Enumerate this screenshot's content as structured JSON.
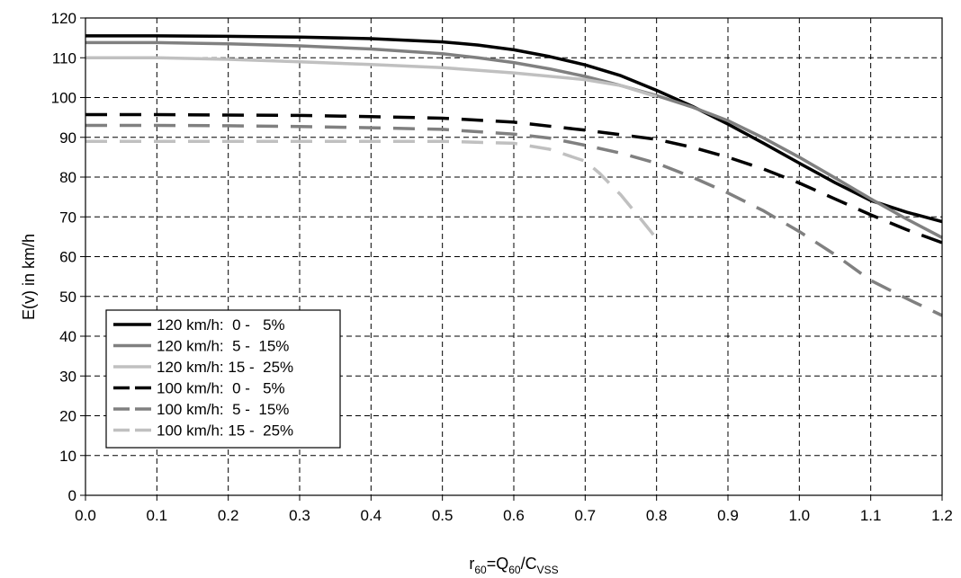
{
  "chart_data": {
    "type": "line",
    "title": "",
    "ylabel": "E(v) in km/h",
    "xlabel": {
      "base": "r",
      "base_sub": "60",
      "mid": "=Q",
      "mid_sub": "60",
      "end": "/C",
      "end_sub": "VSS"
    },
    "xlim": [
      0,
      1.2
    ],
    "ylim": [
      0,
      120
    ],
    "x_ticks": [
      "0.0",
      "0.1",
      "0.2",
      "0.3",
      "0.4",
      "0.5",
      "0.6",
      "0.7",
      "0.8",
      "0.9",
      "1.0",
      "1.1",
      "1.2"
    ],
    "y_ticks": [
      "0",
      "10",
      "20",
      "30",
      "40",
      "50",
      "60",
      "70",
      "80",
      "90",
      "100",
      "110",
      "120"
    ],
    "grid": true,
    "legend_position": "bottom-left",
    "series": [
      {
        "name": "120 km/h:  0 -   5%",
        "color": "#000000",
        "dash": "solid",
        "x": [
          0,
          0.1,
          0.2,
          0.3,
          0.4,
          0.5,
          0.55,
          0.6,
          0.65,
          0.7,
          0.75,
          0.8,
          0.85,
          0.9,
          0.95,
          1.0,
          1.05,
          1.1,
          1.15,
          1.2
        ],
        "y": [
          115.5,
          115.5,
          115.4,
          115.2,
          114.8,
          114.0,
          113.2,
          112.0,
          110.3,
          108.2,
          105.5,
          101.8,
          97.8,
          93.3,
          88.5,
          83.5,
          78.6,
          74.1,
          71.2,
          68.8
        ]
      },
      {
        "name": "120 km/h:  5 -  15%",
        "color": "#808080",
        "dash": "solid",
        "x": [
          0,
          0.1,
          0.2,
          0.3,
          0.4,
          0.5,
          0.55,
          0.6,
          0.65,
          0.7,
          0.75,
          0.8,
          0.85,
          0.9,
          0.95,
          1.0,
          1.05,
          1.1,
          1.15,
          1.2
        ],
        "y": [
          113.8,
          113.8,
          113.5,
          113.0,
          112.2,
          111.0,
          110.0,
          108.8,
          107.2,
          105.3,
          103.0,
          100.5,
          97.6,
          94.2,
          89.8,
          85.0,
          79.8,
          74.5,
          69.5,
          64.8
        ]
      },
      {
        "name": "120 km/h: 15 -  25%",
        "color": "#c0c0c0",
        "dash": "solid",
        "x": [
          0,
          0.1,
          0.2,
          0.3,
          0.4,
          0.5,
          0.6,
          0.7,
          0.75,
          0.8
        ],
        "y": [
          110.0,
          110.0,
          109.6,
          109.0,
          108.3,
          107.5,
          106.2,
          104.5,
          103.0,
          100.2
        ]
      },
      {
        "name": "100 km/h:  0 -   5%",
        "color": "#000000",
        "dash": "dashed",
        "x": [
          0,
          0.1,
          0.2,
          0.3,
          0.4,
          0.5,
          0.6,
          0.7,
          0.8,
          0.85,
          0.9,
          0.95,
          1.0,
          1.05,
          1.1,
          1.15,
          1.2
        ],
        "y": [
          95.7,
          95.7,
          95.6,
          95.5,
          95.2,
          94.8,
          93.8,
          91.8,
          89.5,
          87.5,
          85.0,
          82.0,
          78.5,
          74.5,
          70.5,
          66.8,
          63.5
        ]
      },
      {
        "name": "100 km/h:  5 -  15%",
        "color": "#808080",
        "dash": "dashed",
        "x": [
          0,
          0.1,
          0.2,
          0.3,
          0.4,
          0.5,
          0.6,
          0.65,
          0.7,
          0.75,
          0.8,
          0.85,
          0.9,
          0.95,
          1.0,
          1.05,
          1.1,
          1.15,
          1.2
        ],
        "y": [
          93.0,
          93.0,
          92.9,
          92.7,
          92.4,
          92.0,
          90.8,
          89.8,
          88.0,
          86.0,
          83.5,
          80.0,
          76.0,
          71.5,
          66.3,
          60.5,
          54.0,
          49.5,
          45.2
        ]
      },
      {
        "name": "100 km/h: 15 -  25%",
        "color": "#c0c0c0",
        "dash": "dashed",
        "x": [
          0,
          0.1,
          0.2,
          0.3,
          0.4,
          0.5,
          0.6,
          0.65,
          0.7,
          0.72,
          0.75,
          0.78,
          0.8
        ],
        "y": [
          89.0,
          89.0,
          89.0,
          89.0,
          89.0,
          89.0,
          88.5,
          87.0,
          84.0,
          81.0,
          75.5,
          69.0,
          64.5
        ]
      }
    ]
  }
}
